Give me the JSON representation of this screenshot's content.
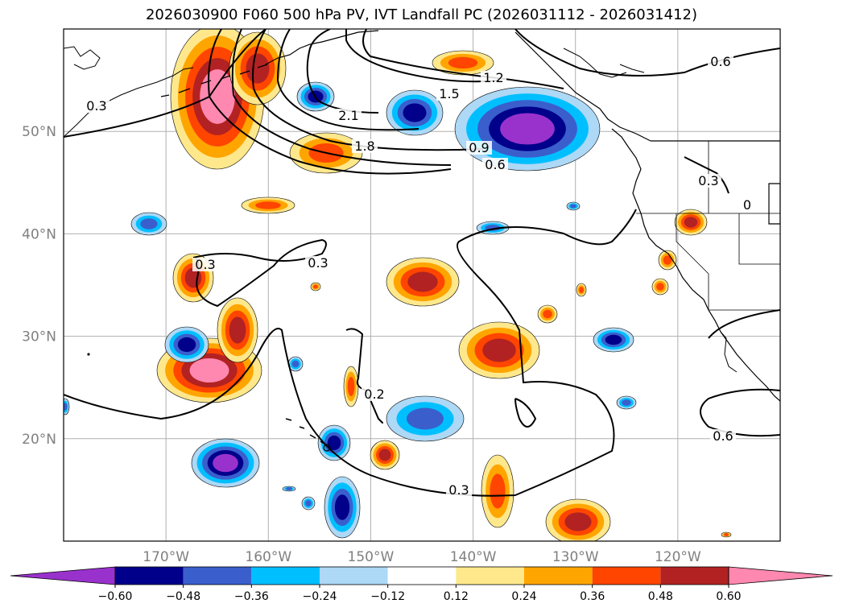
{
  "title": "2026030900 F060 500 hPa PV, IVT Landfall PC (2026031112 - 2026031412)",
  "map": {
    "region": "North Pacific / West coast of North America",
    "lon_range": [
      -180,
      -110
    ],
    "lat_range": [
      10,
      60
    ],
    "lat_ticks": [
      {
        "value": 50,
        "label": "50°N"
      },
      {
        "value": 40,
        "label": "40°N"
      },
      {
        "value": 30,
        "label": "30°N"
      },
      {
        "value": 20,
        "label": "20°N"
      }
    ],
    "lon_ticks": [
      {
        "value": -170,
        "label": "170°W"
      },
      {
        "value": -160,
        "label": "160°W"
      },
      {
        "value": -150,
        "label": "150°W"
      },
      {
        "value": -140,
        "label": "140°W"
      },
      {
        "value": -130,
        "label": "130°W"
      },
      {
        "value": -120,
        "label": "120°W"
      }
    ],
    "contour_labels": [
      "0.3",
      "0.6",
      "0.9",
      "1.2",
      "1.5",
      "1.8",
      "2.1",
      "0.6",
      "0.3",
      "0.3",
      "0.2",
      "0.6",
      "0.3",
      "0.3",
      "0"
    ]
  },
  "colorbar": {
    "colors": [
      "#9932CC",
      "#00008B",
      "#3A5FCD",
      "#00BFFF",
      "#ADD8F6",
      "#FFFFFF",
      "#FFE88C",
      "#FFA500",
      "#FF4500",
      "#B22222",
      "#FF88B0"
    ],
    "labels": [
      "−0.60",
      "−0.48",
      "−0.36",
      "−0.24",
      "−0.12",
      "0.12",
      "0.24",
      "0.36",
      "0.48",
      "0.60"
    ]
  },
  "colors": {
    "coast": "#000000",
    "grid": "#b0b0b0",
    "contour": "#000000"
  }
}
